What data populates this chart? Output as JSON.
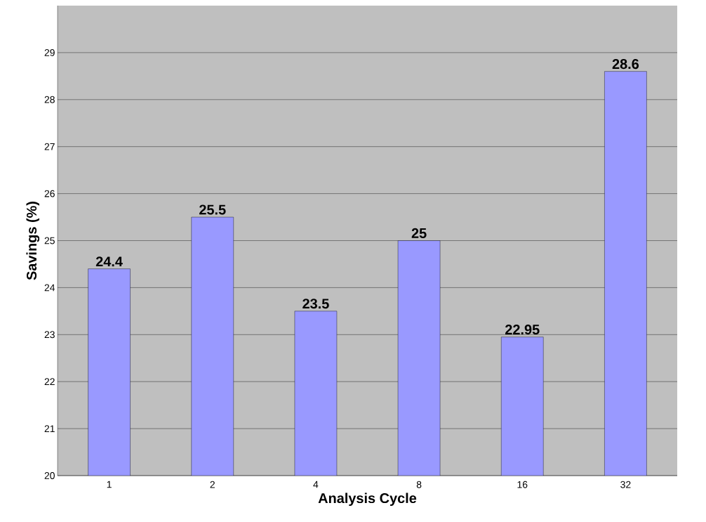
{
  "chart_data": {
    "type": "bar",
    "xlabel": "Analysis Cycle",
    "ylabel": "Savings (%)",
    "categories": [
      "1",
      "2",
      "4",
      "8",
      "16",
      "32"
    ],
    "values": [
      24.4,
      25.5,
      23.5,
      25,
      22.95,
      28.6
    ],
    "color": "#9999ff",
    "ylim": [
      20,
      30
    ],
    "yticks": [
      20,
      21,
      22,
      23,
      24,
      25,
      26,
      27,
      28,
      29
    ],
    "grid": "y",
    "data_labels": true
  }
}
